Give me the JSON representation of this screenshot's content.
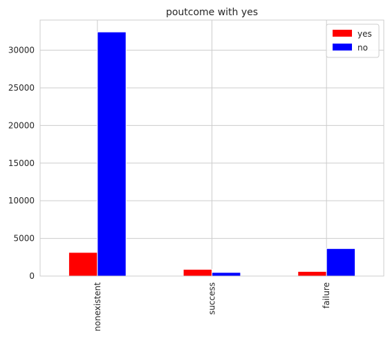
{
  "chart_data": {
    "type": "bar",
    "title": "poutcome with yes",
    "xlabel": "",
    "ylabel": "",
    "categories": [
      "nonexistent",
      "success",
      "failure"
    ],
    "series": [
      {
        "name": "yes",
        "color": "#ff0000",
        "values": [
          3140,
          890,
          610
        ]
      },
      {
        "name": "no",
        "color": "#0000ff",
        "values": [
          32420,
          480,
          3650
        ]
      }
    ],
    "ylim": [
      0,
      34000
    ],
    "yticks": [
      0,
      5000,
      10000,
      15000,
      20000,
      25000,
      30000
    ],
    "grid": true,
    "legend_position": "top-right",
    "x_tick_rotation": "vertical"
  }
}
